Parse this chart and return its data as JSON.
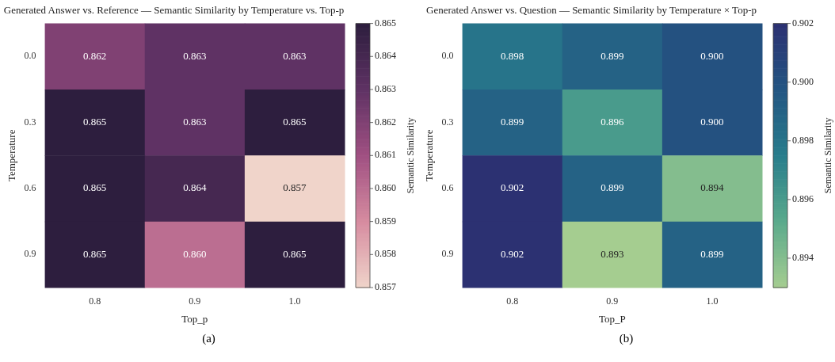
{
  "chart_data": [
    {
      "type": "heatmap",
      "title": "Generated Answer vs. Reference — Semantic Similarity by Temperature vs. Top-p",
      "xlabel": "Top_p",
      "ylabel": "Temperature",
      "clabel": "Semantic Similarity",
      "categories": [
        "0.8",
        "0.9",
        "1.0"
      ],
      "y_categories": [
        "0.0",
        "0.3",
        "0.6",
        "0.9"
      ],
      "cells": [
        [
          0.862,
          0.863,
          0.863
        ],
        [
          0.865,
          0.863,
          0.865
        ],
        [
          0.865,
          0.864,
          0.857
        ],
        [
          0.865,
          0.86,
          0.865
        ]
      ],
      "cell_labels": [
        [
          "0.862",
          "0.863",
          "0.863"
        ],
        [
          "0.865",
          "0.863",
          "0.865"
        ],
        [
          "0.865",
          "0.864",
          "0.857"
        ],
        [
          "0.865",
          "0.860",
          "0.865"
        ]
      ],
      "clim": [
        0.857,
        0.865
      ],
      "cticks": [
        0.857,
        0.858,
        0.859,
        {
          "value": 0.86,
          "label": "0.860"
        },
        0.861,
        0.862,
        0.863,
        0.864,
        0.865
      ],
      "data_labels": true,
      "annotations": [
        "(a)"
      ]
    },
    {
      "type": "heatmap",
      "title": "Generated Answer vs. Question — Semantic Similarity by Temperature × Top-p",
      "xlabel": "Top_P",
      "ylabel": "Temperature",
      "clabel": "Semantic Similarity",
      "categories": [
        "0.8",
        "0.9",
        "1.0"
      ],
      "y_categories": [
        "0.0",
        "0.3",
        "0.6",
        "0.9"
      ],
      "cells": [
        [
          0.898,
          0.899,
          0.9
        ],
        [
          0.899,
          0.896,
          0.9
        ],
        [
          0.902,
          0.899,
          0.894
        ],
        [
          0.902,
          0.893,
          0.899
        ]
      ],
      "cell_labels": [
        [
          "0.898",
          "0.899",
          "0.900"
        ],
        [
          "0.899",
          "0.896",
          "0.900"
        ],
        [
          "0.902",
          "0.899",
          "0.894"
        ],
        [
          "0.902",
          "0.893",
          "0.899"
        ]
      ],
      "clim": [
        0.893,
        0.902
      ],
      "cticks": [
        0.894,
        0.896,
        0.898,
        {
          "value": 0.9,
          "label": "0.900"
        },
        0.902
      ],
      "data_labels": true,
      "annotations": [
        "(b)"
      ]
    }
  ]
}
